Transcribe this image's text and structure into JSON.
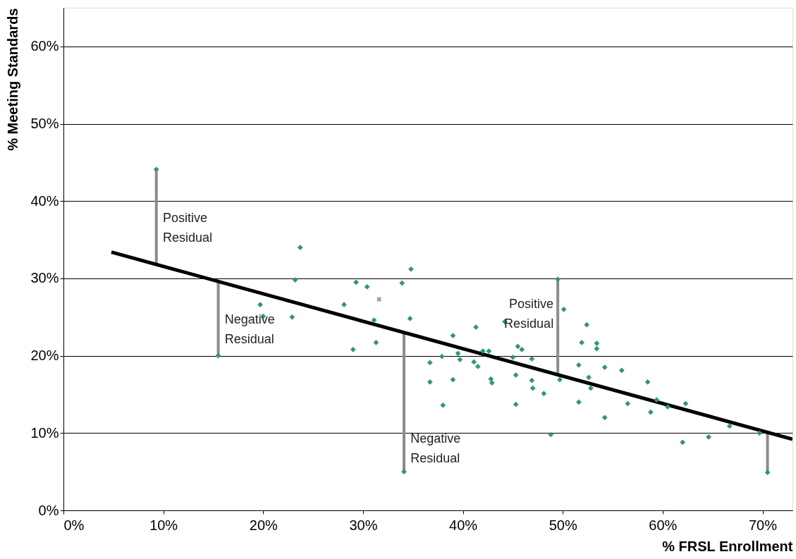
{
  "chart_data": {
    "type": "scatter",
    "xlabel": "% FRSL Enrollment",
    "ylabel": "% Meeting Standards",
    "xlim": [
      0,
      73
    ],
    "ylim": [
      0,
      65
    ],
    "xticks": [
      {
        "value": 0,
        "label": "0%"
      },
      {
        "value": 10,
        "label": "10%"
      },
      {
        "value": 20,
        "label": "20%"
      },
      {
        "value": 30,
        "label": "30%"
      },
      {
        "value": 40,
        "label": "40%"
      },
      {
        "value": 50,
        "label": "50%"
      },
      {
        "value": 60,
        "label": "60%"
      },
      {
        "value": 70,
        "label": "70%"
      }
    ],
    "yticks": [
      {
        "value": 0,
        "label": "0%"
      },
      {
        "value": 10,
        "label": "10%"
      },
      {
        "value": 20,
        "label": "20%"
      },
      {
        "value": 30,
        "label": "30%"
      },
      {
        "value": 40,
        "label": "40%"
      },
      {
        "value": 50,
        "label": "50%"
      },
      {
        "value": 60,
        "label": "60%"
      }
    ],
    "grid": "y",
    "series": [
      {
        "type": "line",
        "color": "#8c8c8c",
        "x": [
          9.3,
          9.3
        ],
        "values": [
          44.1,
          31.8
        ]
      },
      {
        "type": "line",
        "color": "#8c8c8c",
        "x": [
          15.5,
          15.5
        ],
        "values": [
          29.6,
          20.0
        ]
      },
      {
        "type": "line",
        "color": "#8c8c8c",
        "x": [
          34.1,
          34.1
        ],
        "values": [
          23.0,
          5.0
        ]
      },
      {
        "type": "line",
        "color": "#8c8c8c",
        "x": [
          49.5,
          49.5
        ],
        "values": [
          29.9,
          17.5
        ]
      },
      {
        "type": "line",
        "color": "#8c8c8c",
        "x": [
          70.5,
          70.5
        ],
        "values": [
          10.0,
          4.9
        ]
      },
      {
        "type": "line",
        "color": "#000000",
        "x": [
          4.8,
          73
        ],
        "values": [
          33.4,
          9.2
        ]
      },
      {
        "marker": "diamond",
        "color": "#2e9a67",
        "x": [
          9.3,
          15.5,
          34.1,
          49.5,
          70.5,
          23.7,
          23.2,
          29.3,
          30.4,
          33.9,
          34.8,
          19.7,
          20.0,
          22.9,
          28.1,
          31.1,
          34.7,
          29.0,
          31.3,
          36.7,
          36.7,
          50.1,
          44.2,
          41.3,
          39.0,
          52.4,
          51.9,
          53.4,
          53.4,
          45.5,
          45.9,
          37.9,
          39.5,
          39.7,
          42.0,
          42.6,
          41.1,
          41.5,
          45.0,
          46.9,
          51.6,
          54.2,
          39.0,
          42.8,
          42.9,
          45.3,
          46.9,
          47.0,
          48.1,
          49.7,
          52.6,
          52.8,
          38.0,
          45.3,
          51.6,
          54.2,
          48.8,
          55.9,
          58.5,
          56.5,
          58.8,
          62.3,
          60.5,
          59.4,
          66.7,
          69.7,
          62.0,
          64.6
        ],
        "values": [
          44.1,
          20.0,
          5.0,
          29.9,
          4.9,
          34.0,
          29.8,
          29.5,
          28.9,
          29.4,
          31.2,
          26.6,
          25.1,
          25.0,
          26.6,
          24.6,
          24.8,
          20.8,
          21.7,
          19.1,
          16.6,
          26.0,
          24.4,
          23.7,
          22.6,
          24.0,
          21.7,
          21.6,
          20.9,
          21.2,
          20.8,
          19.9,
          20.3,
          19.5,
          20.6,
          20.6,
          19.2,
          18.6,
          19.8,
          19.6,
          18.8,
          18.5,
          16.9,
          17.0,
          16.5,
          17.5,
          16.8,
          15.8,
          15.1,
          16.9,
          17.2,
          15.8,
          13.6,
          13.7,
          14.0,
          12.0,
          9.8,
          18.1,
          16.6,
          13.8,
          12.7,
          13.8,
          13.4,
          14.3,
          10.9,
          10.0,
          8.8,
          9.5
        ]
      },
      {
        "type": "scatter",
        "marker": "cross",
        "color": "#a0a0a0",
        "x": [
          31.6
        ],
        "values": [
          27.3
        ]
      }
    ],
    "annotations": [
      {
        "text": "Positive\nResidual",
        "x": 9.6,
        "y": 38.6
      },
      {
        "text": "Negative\nResidual",
        "x": 15.8,
        "y": 25.4
      },
      {
        "text": "Negative\nResidual",
        "x": 34.4,
        "y": 10.0
      },
      {
        "text": "Positive\nResidual",
        "x": 49.5,
        "y": 27.4
      }
    ]
  }
}
